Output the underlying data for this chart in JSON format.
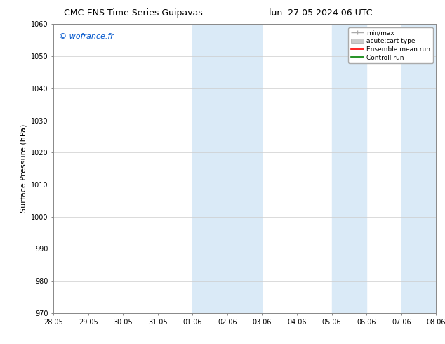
{
  "title_left": "CMC-ENS Time Series Guipavas",
  "title_right": "lun. 27.05.2024 06 UTC",
  "ylabel": "Surface Pressure (hPa)",
  "ylim": [
    970,
    1060
  ],
  "yticks": [
    970,
    980,
    990,
    1000,
    1010,
    1020,
    1030,
    1040,
    1050,
    1060
  ],
  "xtick_labels": [
    "28.05",
    "29.05",
    "30.05",
    "31.05",
    "01.06",
    "02.06",
    "03.06",
    "04.06",
    "05.06",
    "06.06",
    "07.06",
    "08.06"
  ],
  "xtick_positions": [
    0,
    1,
    2,
    3,
    4,
    5,
    6,
    7,
    8,
    9,
    10,
    11
  ],
  "shaded_regions": [
    {
      "x_start": 4,
      "x_end": 6,
      "color": "#daeaf7"
    },
    {
      "x_start": 8,
      "x_end": 9,
      "color": "#daeaf7"
    },
    {
      "x_start": 10,
      "x_end": 11,
      "color": "#daeaf7"
    }
  ],
  "watermark_text": "© wofrance.fr",
  "watermark_color": "#0055cc",
  "legend_entries": [
    {
      "label": "min/max",
      "color": "#aaaaaa",
      "lw": 1.0
    },
    {
      "label": "acute;cart type",
      "color": "#cccccc",
      "lw": 6
    },
    {
      "label": "Ensemble mean run",
      "color": "#ff0000",
      "lw": 1.2
    },
    {
      "label": "Controll run",
      "color": "#008000",
      "lw": 1.2
    }
  ],
  "bg_color": "#ffffff",
  "grid_color": "#cccccc",
  "title_fontsize": 9,
  "label_fontsize": 8,
  "tick_fontsize": 7,
  "legend_fontsize": 6.5,
  "watermark_fontsize": 8
}
